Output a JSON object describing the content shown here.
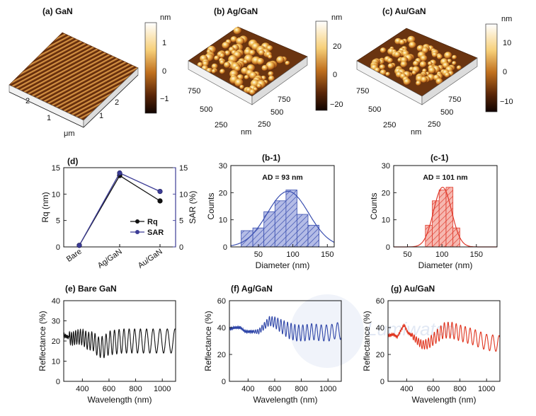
{
  "afm": [
    {
      "id": "a",
      "label": "(a) GaN",
      "unit": "nm",
      "scale_ticks": [
        "1",
        "0",
        "−1"
      ],
      "axis_unit": "μm",
      "left_ticks": [
        "2",
        "1"
      ],
      "right_ticks": [
        "2",
        "1"
      ]
    },
    {
      "id": "b",
      "label": "(b) Ag/GaN",
      "unit": "nm",
      "scale_ticks": [
        "20",
        "0",
        "−20"
      ],
      "axis_unit": "nm",
      "left_ticks": [
        "750",
        "500",
        "250"
      ],
      "right_ticks": [
        "750",
        "500",
        "250"
      ]
    },
    {
      "id": "c",
      "label": "(c) Au/GaN",
      "unit": "nm",
      "scale_ticks": [
        "10",
        "0",
        "−10"
      ],
      "axis_unit": "nm",
      "left_ticks": [
        "750",
        "500",
        "250"
      ],
      "right_ticks": [
        "750",
        "500",
        "250"
      ]
    }
  ],
  "chart_data": [
    {
      "id": "d",
      "type": "line",
      "title": "(d)",
      "categories": [
        "Bare",
        "Ag/GaN",
        "Au/GaN"
      ],
      "ylabel": "Rq (nm)",
      "y2label": "SAR (%)",
      "ylim": [
        0,
        15
      ],
      "y2lim": [
        0,
        15
      ],
      "yticks": [
        "0",
        "5",
        "10",
        "15"
      ],
      "y2ticks": [
        "0",
        "5",
        "10",
        "15"
      ],
      "series": [
        {
          "name": "Rq",
          "axis": "left",
          "color": "#111111",
          "values": [
            0.3,
            13.5,
            8.7
          ]
        },
        {
          "name": "SAR",
          "axis": "right",
          "color": "#3c3c96",
          "values": [
            0.3,
            14.0,
            10.5
          ]
        }
      ]
    },
    {
      "id": "b1",
      "type": "bar",
      "title": "(b-1)",
      "annotation": "AD = 93 nm",
      "xlabel": "Diameter (nm)",
      "ylabel": "Counts",
      "xlim": [
        10,
        160
      ],
      "ylim": [
        0,
        30
      ],
      "xticks": [
        "50",
        "100",
        "150"
      ],
      "yticks": [
        "0",
        "10",
        "20",
        "30"
      ],
      "color": "#3a4fb0",
      "bins": [
        {
          "x0": 25,
          "x1": 42,
          "count": 6
        },
        {
          "x0": 42,
          "x1": 58,
          "count": 7
        },
        {
          "x0": 58,
          "x1": 74,
          "count": 13
        },
        {
          "x0": 74,
          "x1": 90,
          "count": 17
        },
        {
          "x0": 90,
          "x1": 106,
          "count": 21
        },
        {
          "x0": 106,
          "x1": 122,
          "count": 12
        },
        {
          "x0": 122,
          "x1": 138,
          "count": 8
        }
      ],
      "fit": {
        "mean": 93,
        "sd": 30,
        "peak": 20.5
      }
    },
    {
      "id": "c1",
      "type": "bar",
      "title": "(c-1)",
      "annotation": "AD = 101 nm",
      "xlabel": "Diameter (nm)",
      "ylabel": "Counts",
      "xlim": [
        30,
        180
      ],
      "ylim": [
        0,
        30
      ],
      "xticks": [
        "50",
        "100",
        "150"
      ],
      "yticks": [
        "0",
        "10",
        "20",
        "30"
      ],
      "color": "#e03a2c",
      "bins": [
        {
          "x0": 76,
          "x1": 86,
          "count": 8
        },
        {
          "x0": 86,
          "x1": 96,
          "count": 17
        },
        {
          "x0": 96,
          "x1": 106,
          "count": 21
        },
        {
          "x0": 106,
          "x1": 116,
          "count": 22
        },
        {
          "x0": 116,
          "x1": 126,
          "count": 7
        }
      ],
      "fit": {
        "mean": 101,
        "sd": 13,
        "peak": 22
      }
    },
    {
      "id": "e",
      "type": "line",
      "title": "(e) Bare GaN",
      "xlabel": "Wavelength (nm)",
      "ylabel": "Reflectance (%)",
      "xlim": [
        260,
        1100
      ],
      "ylim": [
        0,
        40
      ],
      "xticks": [
        "400",
        "600",
        "800",
        "1000"
      ],
      "yticks": [
        "0",
        "10",
        "20",
        "30",
        "40"
      ],
      "color": "#111111",
      "key_points": [
        [
          260,
          23
        ],
        [
          320,
          21
        ],
        [
          360,
          22
        ],
        [
          400,
          22
        ],
        [
          440,
          20
        ],
        [
          480,
          20
        ],
        [
          520,
          17
        ],
        [
          560,
          17
        ],
        [
          600,
          19
        ],
        [
          700,
          20
        ],
        [
          800,
          20
        ],
        [
          1000,
          20
        ],
        [
          1100,
          20
        ]
      ],
      "oscillation_start": 300,
      "oscillation_amplitude": [
        3,
        6
      ],
      "oscillation_period": [
        14,
        60
      ]
    },
    {
      "id": "f",
      "type": "line",
      "title": "(f) Ag/GaN",
      "xlabel": "Wavelength (nm)",
      "ylabel": "Reflectance (%)",
      "xlim": [
        260,
        1100
      ],
      "ylim": [
        0,
        60
      ],
      "xticks": [
        "400",
        "600",
        "800",
        "1000"
      ],
      "yticks": [
        "0",
        "20",
        "40",
        "60"
      ],
      "color": "#2e45a8",
      "key_points": [
        [
          260,
          39
        ],
        [
          300,
          40
        ],
        [
          340,
          40
        ],
        [
          380,
          37
        ],
        [
          420,
          37
        ],
        [
          480,
          37
        ],
        [
          520,
          41
        ],
        [
          560,
          45
        ],
        [
          600,
          44
        ],
        [
          650,
          41
        ],
        [
          700,
          38
        ],
        [
          760,
          36
        ],
        [
          820,
          36
        ],
        [
          880,
          37
        ],
        [
          950,
          36
        ],
        [
          1020,
          36
        ],
        [
          1060,
          38
        ],
        [
          1100,
          37
        ]
      ],
      "oscillation_start": 440,
      "oscillation_amplitude": [
        1,
        6
      ],
      "oscillation_period": [
        14,
        45
      ]
    },
    {
      "id": "g",
      "type": "line",
      "title": "(g) Au/GaN",
      "xlabel": "Wavelength (nm)",
      "ylabel": "Reflectance (%)",
      "xlim": [
        260,
        1100
      ],
      "ylim": [
        0,
        60
      ],
      "xticks": [
        "400",
        "600",
        "800",
        "1000"
      ],
      "yticks": [
        "0",
        "20",
        "40",
        "60"
      ],
      "color": "#e0351f",
      "key_points": [
        [
          260,
          34
        ],
        [
          300,
          35
        ],
        [
          330,
          33
        ],
        [
          350,
          37
        ],
        [
          380,
          42
        ],
        [
          410,
          36
        ],
        [
          440,
          34
        ],
        [
          480,
          30
        ],
        [
          520,
          27
        ],
        [
          560,
          28
        ],
        [
          620,
          33
        ],
        [
          680,
          38
        ],
        [
          740,
          38
        ],
        [
          800,
          36
        ],
        [
          900,
          33
        ],
        [
          1000,
          29
        ],
        [
          1100,
          28
        ]
      ],
      "oscillation_start": 440,
      "oscillation_amplitude": [
        2,
        6
      ],
      "oscillation_period": [
        14,
        50
      ]
    }
  ],
  "watermark": {
    "text": "Lumiwatch",
    "color": "#c9d6ec"
  }
}
